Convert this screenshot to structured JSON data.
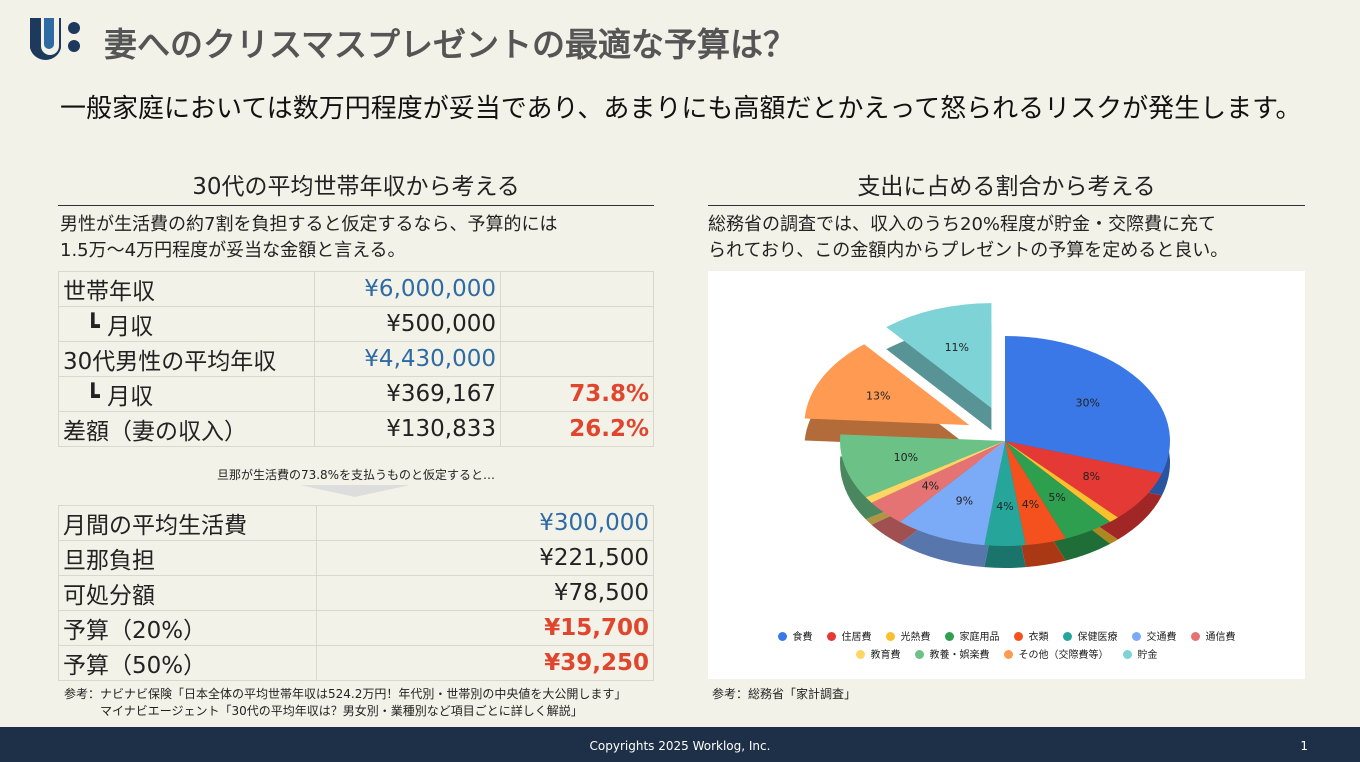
{
  "header": {
    "title": "妻へのクリスマスプレゼントの最適な予算は？",
    "lead": "一般家庭においては数万円程度が妥当であり、あまりにも高額だとかえって怒られるリスクが発生します。"
  },
  "left": {
    "heading": "30代の平均世帯年収から考える",
    "desc": [
      "男性が生活費の約7割を負担すると仮定するなら、予算的には",
      "1.5万〜4万円程度が妥当な金額と言える。"
    ],
    "table1": [
      {
        "label": "世帯年収",
        "value": "¥6,000,000",
        "pct": "",
        "style": "blue"
      },
      {
        "label": "　┗ 月収",
        "value": "¥500,000",
        "pct": "",
        "style": ""
      },
      {
        "label": "30代男性の平均年収",
        "value": "¥4,430,000",
        "pct": "",
        "style": "blue"
      },
      {
        "label": "　┗ 月収",
        "value": "¥369,167",
        "pct": "73.8%",
        "style": ""
      },
      {
        "label": "差額（妻の収入）",
        "value": "¥130,833",
        "pct": "26.2%",
        "style": ""
      }
    ],
    "assumption": "旦那が生活費の73.8%を支払うものと仮定すると…",
    "table2": [
      {
        "label": "月間の平均生活費",
        "value": "¥300,000",
        "style": "blue"
      },
      {
        "label": "旦那負担",
        "value": "¥221,500",
        "style": ""
      },
      {
        "label": "可処分額",
        "value": "¥78,500",
        "style": ""
      },
      {
        "label": "予算（20%）",
        "value": "¥15,700",
        "style": "red"
      },
      {
        "label": "予算（50%）",
        "value": "¥39,250",
        "style": "red"
      }
    ],
    "refs": [
      "参考：ナビナビ保険「日本全体の平均世帯年収は524.2万円！年代別・世帯別の中央値を大公開します」",
      "マイナビエージェント「30代の平均年収は？男女別・業種別など項目ごとに詳しく解説」"
    ]
  },
  "right": {
    "heading": "支出に占める割合から考える",
    "desc": [
      "総務省の調査では、収入のうち20%程度が貯金・交際費に充て",
      "られており、この金額内からプレゼントの予算を定めると良い。"
    ],
    "ref": "参考：総務省「家計調査」"
  },
  "chart_data": {
    "type": "pie",
    "categories": [
      "食費",
      "住居費",
      "光熱費",
      "家庭用品",
      "衣類",
      "保健医療",
      "交通費",
      "通信費",
      "教育費",
      "教養・娯楽費",
      "その他（交際費等）",
      "貯金"
    ],
    "values": [
      30,
      8,
      1,
      5,
      4,
      4,
      9,
      4,
      1,
      10,
      13,
      11
    ],
    "labels": [
      "30%",
      "8%",
      "",
      "5%",
      "4%",
      "4%",
      "9%",
      "4%",
      "",
      "10%",
      "13%",
      "11%"
    ],
    "colors": [
      "#3b78e7",
      "#e53935",
      "#fbc02d",
      "#2e9e4f",
      "#f4511e",
      "#26a69a",
      "#7baaf7",
      "#e57373",
      "#fdd663",
      "#6cc187",
      "#ff9a52",
      "#7ed3d6"
    ],
    "exploded": [
      "その他（交際費等）",
      "貯金"
    ],
    "legend_position": "bottom"
  },
  "footer": {
    "copyright": "Copyrights 2025 Worklog, Inc.",
    "page": "1"
  }
}
